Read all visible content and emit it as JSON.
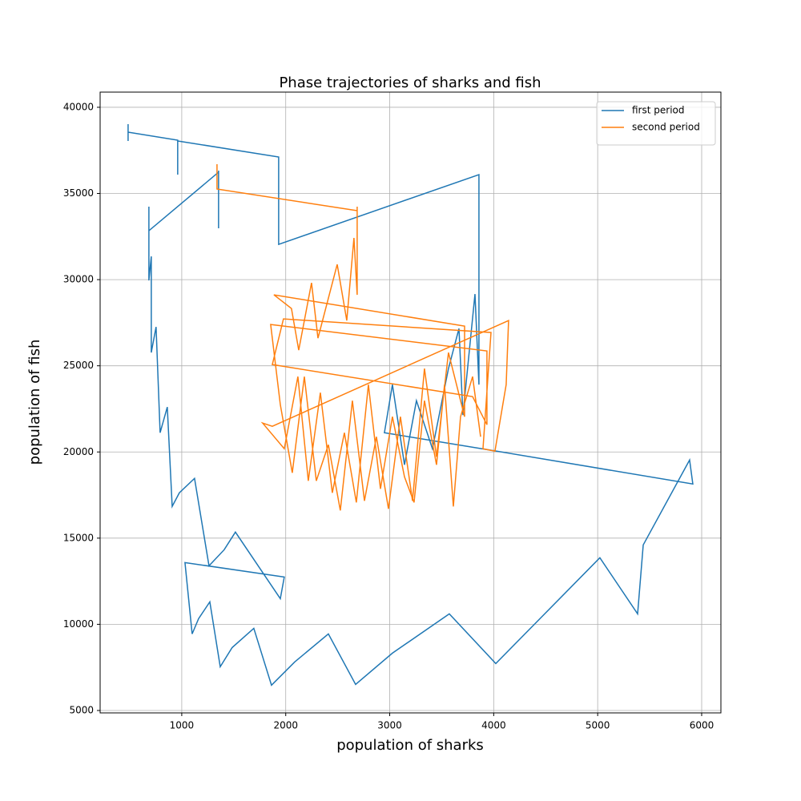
{
  "chart_data": {
    "type": "line",
    "title": "Phase trajectories of sharks and fish",
    "xlabel": "population of sharks",
    "ylabel": "population of fish",
    "xlim": [
      215,
      6185
    ],
    "ylim": [
      4860,
      40880
    ],
    "xticks": [
      1000,
      2000,
      3000,
      4000,
      5000,
      6000
    ],
    "yticks": [
      5000,
      10000,
      15000,
      20000,
      25000,
      30000,
      35000,
      40000
    ],
    "grid": true,
    "legend": "upper right",
    "series": [
      {
        "name": "first period",
        "color": "#1f77b4",
        "x": [
          484,
          484,
          484,
          961,
          961,
          961,
          1932,
          1932,
          1932,
          3858,
          3858,
          3858,
          3820,
          3704,
          3666,
          3565,
          3411,
          3257,
          3142,
          3026,
          2949,
          4028,
          5915,
          5884,
          5438,
          5384,
          5021,
          4475,
          4020,
          3573,
          3026,
          2672,
          2410,
          2086,
          1863,
          1693,
          1485,
          1370,
          1270,
          1162,
          1100,
          1031,
          1986,
          1948,
          1516,
          1408,
          1262,
          1123,
          977,
          908,
          861,
          792,
          753,
          707,
          707,
          684,
          684,
          684,
          1354,
          1354,
          1354,
          1354
        ],
        "values": [
          39023,
          38047,
          38558,
          38093,
          36093,
          38047,
          37116,
          36093,
          32047,
          36093,
          31349,
          23908,
          29163,
          22140,
          27163,
          24838,
          20187,
          22977,
          19257,
          23908,
          21117,
          20047,
          18140,
          19536,
          14606,
          10606,
          13861,
          10513,
          7722,
          10606,
          8327,
          6513,
          9443,
          7815,
          6466,
          9768,
          8652,
          7536,
          11303,
          10327,
          9443,
          13582,
          12745,
          11489,
          15350,
          14326,
          13396,
          18466,
          17629,
          16838,
          22605,
          21117,
          27256,
          25768,
          31349,
          29954,
          34233,
          32837,
          36233,
          33675,
          32977,
          36326
        ]
      },
      {
        "name": "second period",
        "color": "#ff7f0e",
        "x": [
          1339,
          1339,
          2687,
          2687,
          2687,
          2656,
          2587,
          2495,
          2310,
          2248,
          2125,
          2055,
          1886,
          3720,
          3720,
          3565,
          3450,
          3334,
          3219,
          3103,
          2988,
          2872,
          2757,
          2641,
          2525,
          2410,
          2294,
          2179,
          2063,
          1948,
          1855,
          3935,
          3935,
          3797,
          1871,
          1978,
          3974,
          3897,
          4012,
          4120,
          4143,
          1871,
          1778,
          1986,
          2117,
          2217,
          2333,
          2448,
          2564,
          2679,
          2795,
          2911,
          3026,
          3142,
          3234,
          3334,
          3450,
          3527,
          3612,
          3681,
          3797,
          3874
        ],
        "values": [
          36698,
          35256,
          34000,
          34233,
          29117,
          32419,
          27628,
          30884,
          26605,
          29814,
          25907,
          28326,
          29117,
          27303,
          22047,
          25768,
          19722,
          24838,
          17164,
          22047,
          16698,
          20884,
          17164,
          22977,
          16605,
          20419,
          18326,
          24373,
          18791,
          22745,
          27396,
          25861,
          21582,
          23210,
          25070,
          27721,
          26931,
          20187,
          20047,
          23908,
          27628,
          21489,
          21675,
          20187,
          24373,
          18326,
          23442,
          17629,
          21117,
          17070,
          23908,
          17861,
          22047,
          18559,
          17070,
          22977,
          19257,
          23908,
          16838,
          22047,
          24373,
          20884
        ]
      }
    ]
  }
}
